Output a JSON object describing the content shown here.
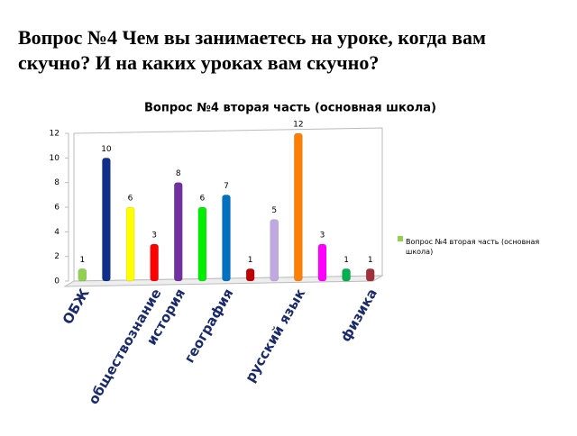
{
  "header": {
    "lines": [
      "Вопрос №4 Чем вы занимаетесь на уроке, когда вам",
      "скучно? И на каких уроках вам скучно?"
    ]
  },
  "chart_data": {
    "type": "bar",
    "title": "Вопрос №4 вторая часть (основная школа)",
    "categories": [
      "ОБЖ",
      null,
      null,
      "обществознание",
      "история",
      null,
      "география",
      null,
      null,
      "русский язык",
      null,
      null,
      "физика"
    ],
    "series": [
      {
        "name": "Вопрос №4 вторая часть (основная школа)",
        "color": "#92d050",
        "values": [
          1,
          10,
          6,
          3,
          8,
          6,
          7,
          1,
          5,
          12,
          3,
          1,
          1
        ]
      }
    ],
    "colors": [
      "#92d050",
      "#0f2f8a",
      "#ffff00",
      "#ff0000",
      "#7030a0",
      "#00ee00",
      "#0070c0",
      "#c00000",
      "#c0a8e0",
      "#ff8000",
      "#ff00ff",
      "#00b050",
      "#a0303a"
    ],
    "ylim": [
      0,
      12
    ],
    "yticks": [
      0,
      2,
      4,
      6,
      8,
      10,
      12
    ],
    "grid": false,
    "legend": "right"
  }
}
